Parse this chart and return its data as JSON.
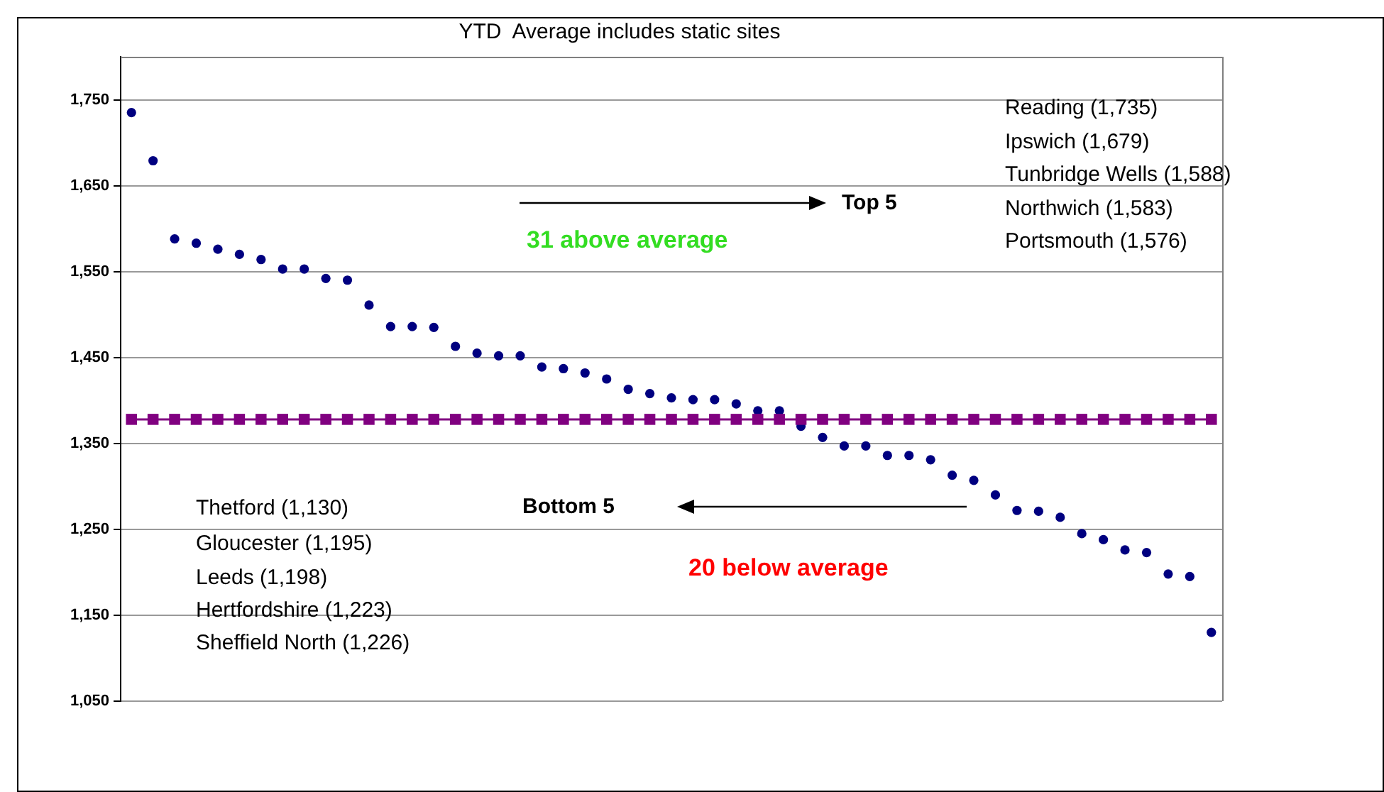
{
  "chart_data": {
    "type": "scatter",
    "title": "YTD  Average includes static sites",
    "categories": [
      null,
      null,
      null,
      null,
      null,
      null,
      null,
      null,
      null,
      null,
      null,
      null,
      null,
      null,
      null,
      null,
      null,
      null,
      null,
      null,
      null,
      null,
      null,
      null,
      null,
      null,
      null,
      null,
      null,
      null,
      null,
      null,
      null,
      null,
      null,
      null,
      null,
      null,
      null,
      null,
      null,
      null,
      null,
      null,
      null,
      null,
      null,
      null,
      null,
      null,
      null
    ],
    "series": [
      {
        "color": "#000080",
        "marker": "circle",
        "values": [
          1735,
          1679,
          1588,
          1583,
          1576,
          1570,
          1564,
          1553,
          1553,
          1542,
          1540,
          1511,
          1486,
          1486,
          1485,
          1463,
          1455,
          1452,
          1452,
          1439,
          1437,
          1432,
          1425,
          1413,
          1408,
          1403,
          1401,
          1401,
          1396,
          1388,
          1388,
          1370,
          1357,
          1347,
          1347,
          1336,
          1336,
          1331,
          1313,
          1307,
          1290,
          1272,
          1271,
          1264,
          1245,
          1238,
          1226,
          1223,
          1198,
          1195,
          1130
        ]
      },
      {
        "type": "line",
        "color": "#800080",
        "marker": "square",
        "values": [
          1378,
          1378,
          1378,
          1378,
          1378,
          1378,
          1378,
          1378,
          1378,
          1378,
          1378,
          1378,
          1378,
          1378,
          1378,
          1378,
          1378,
          1378,
          1378,
          1378,
          1378,
          1378,
          1378,
          1378,
          1378,
          1378,
          1378,
          1378,
          1378,
          1378,
          1378,
          1378,
          1378,
          1378,
          1378,
          1378,
          1378,
          1378,
          1378,
          1378,
          1378,
          1378,
          1378,
          1378,
          1378,
          1378,
          1378,
          1378,
          1378,
          1378,
          1378
        ]
      }
    ],
    "ylim": [
      1050,
      1800
    ],
    "yticks": [
      {
        "value": 1050,
        "label": "1,050"
      },
      {
        "value": 1150,
        "label": "1,150"
      },
      {
        "value": 1250,
        "label": "1,250"
      },
      {
        "value": 1350,
        "label": "1,350"
      },
      {
        "value": 1450,
        "label": "1,450"
      },
      {
        "value": 1550,
        "label": "1,550"
      },
      {
        "value": 1650,
        "label": "1,650"
      },
      {
        "value": 1750,
        "label": "1,750"
      }
    ],
    "grid": "y",
    "legend": false,
    "annotations": [
      "Reading (1,735)",
      "Ipswich (1,679)",
      "Tunbridge Wells (1,588)",
      "Northwich (1,583)",
      "Portsmouth (1,576)",
      "Top 5",
      "31 above average",
      "Thetford (1,130)",
      "Gloucester (1,195)",
      "Leeds (1,198)",
      "Hertfordshire (1,223)",
      "Sheffield North (1,226)",
      "Bottom 5",
      "20 below average"
    ]
  }
}
